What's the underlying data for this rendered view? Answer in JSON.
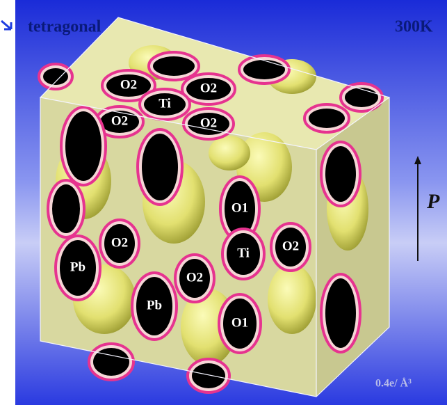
{
  "header": {
    "phase": "tetragonal",
    "temperature": "300K"
  },
  "polarization_label": "P",
  "isosurface_label": "0.4e/ Å³",
  "atom_labels": [
    "O2",
    "O2",
    "Ti",
    "O2",
    "O2",
    "O1",
    "O2",
    "Ti",
    "O2",
    "Pb",
    "O2",
    "Pb",
    "O1"
  ]
}
